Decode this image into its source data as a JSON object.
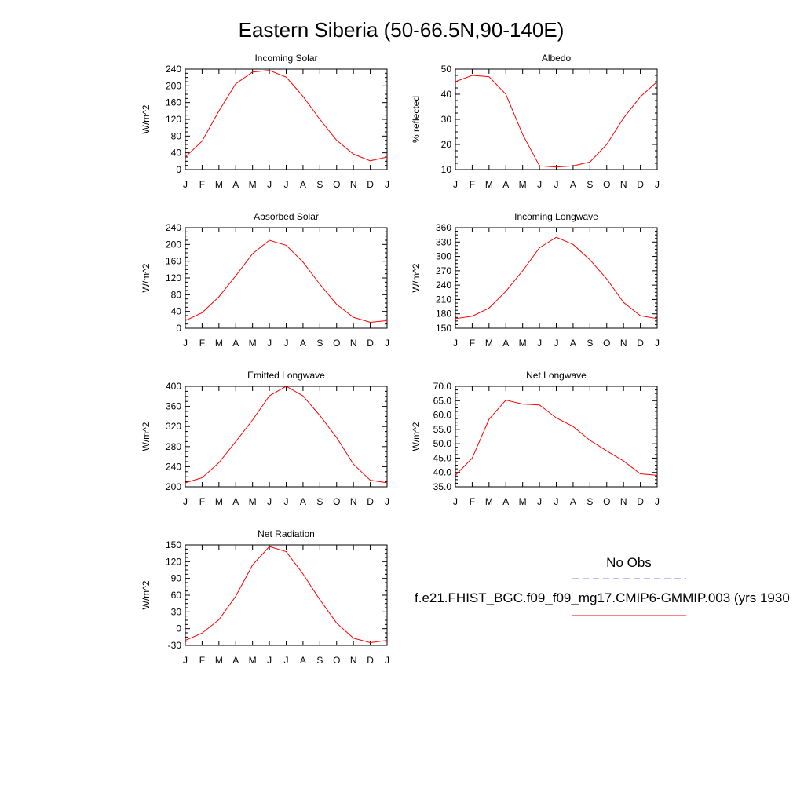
{
  "figure": {
    "title": "Eastern Siberia (50-66.5N,90-140E)"
  },
  "legend": {
    "obs_label": "No Obs",
    "obs_color": "#7a86ff",
    "model_label": "f.e21.FHIST_BGC.f09_f09_mg17.CMIP6-GMMIP.003 (yrs 1930",
    "model_color": "#ff0000"
  },
  "chart_data": [
    {
      "type": "line",
      "title": "Incoming Solar",
      "ylabel": "W/m^2",
      "ylim": [
        0,
        240
      ],
      "yticks": [
        "0",
        "40",
        "80",
        "120",
        "160",
        "200",
        "240"
      ],
      "categories": [
        "J",
        "F",
        "M",
        "A",
        "M",
        "J",
        "J",
        "A",
        "S",
        "O",
        "N",
        "D",
        "J"
      ],
      "series": [
        {
          "values": [
            30,
            68,
            140,
            205,
            233,
            237,
            221,
            175,
            120,
            70,
            37,
            21,
            30
          ]
        }
      ]
    },
    {
      "type": "line",
      "title": "Albedo",
      "ylabel": "% reflected",
      "ylim": [
        10,
        50
      ],
      "yticks": [
        "10",
        "20",
        "30",
        "40",
        "50"
      ],
      "categories": [
        "J",
        "F",
        "M",
        "A",
        "M",
        "J",
        "J",
        "A",
        "S",
        "O",
        "N",
        "D",
        "J"
      ],
      "series": [
        {
          "values": [
            45,
            47.5,
            47,
            40,
            24,
            11.5,
            11,
            11.5,
            13,
            20,
            30.5,
            39,
            45
          ]
        }
      ]
    },
    {
      "type": "line",
      "title": "Absorbed Solar",
      "ylabel": "W/m^2",
      "ylim": [
        0,
        240
      ],
      "yticks": [
        "0",
        "40",
        "80",
        "120",
        "160",
        "200",
        "240"
      ],
      "categories": [
        "J",
        "F",
        "M",
        "A",
        "M",
        "J",
        "J",
        "A",
        "S",
        "O",
        "N",
        "D",
        "J"
      ],
      "series": [
        {
          "values": [
            18,
            37,
            75,
            125,
            178,
            210,
            198,
            158,
            105,
            57,
            26,
            14,
            18
          ]
        }
      ]
    },
    {
      "type": "line",
      "title": "Incoming Longwave",
      "ylabel": "W/m^2",
      "ylim": [
        150,
        360
      ],
      "yticks": [
        "150",
        "180",
        "210",
        "240",
        "270",
        "300",
        "330",
        "360"
      ],
      "categories": [
        "J",
        "F",
        "M",
        "A",
        "M",
        "J",
        "J",
        "A",
        "S",
        "O",
        "N",
        "D",
        "J"
      ],
      "series": [
        {
          "values": [
            170,
            175,
            192,
            227,
            270,
            318,
            340,
            325,
            293,
            253,
            204,
            176,
            170
          ]
        }
      ]
    },
    {
      "type": "line",
      "title": "Emitted Longwave",
      "ylabel": "W/m^2",
      "ylim": [
        200,
        400
      ],
      "yticks": [
        "200",
        "240",
        "280",
        "320",
        "360",
        "400"
      ],
      "categories": [
        "J",
        "F",
        "M",
        "A",
        "M",
        "J",
        "J",
        "A",
        "S",
        "O",
        "N",
        "D",
        "J"
      ],
      "series": [
        {
          "values": [
            208,
            218,
            248,
            290,
            333,
            381,
            400,
            381,
            342,
            298,
            245,
            213,
            208
          ]
        }
      ]
    },
    {
      "type": "line",
      "title": "Net Longwave",
      "ylabel": "W/m^2",
      "ylim": [
        35,
        70
      ],
      "yticks": [
        "35.0",
        "40.0",
        "45.0",
        "50.0",
        "55.0",
        "60.0",
        "65.0",
        "70.0"
      ],
      "categories": [
        "J",
        "F",
        "M",
        "A",
        "M",
        "J",
        "J",
        "A",
        "S",
        "O",
        "N",
        "D",
        "J"
      ],
      "series": [
        {
          "values": [
            39,
            45,
            58.5,
            65.2,
            63.8,
            63.5,
            59,
            56,
            51.2,
            47.5,
            44,
            39.5,
            39
          ]
        }
      ]
    },
    {
      "type": "line",
      "title": "Net Radiation",
      "ylabel": "W/m^2",
      "ylim": [
        -30,
        150
      ],
      "yticks": [
        "-30",
        "0",
        "30",
        "60",
        "90",
        "120",
        "150"
      ],
      "categories": [
        "J",
        "F",
        "M",
        "A",
        "M",
        "J",
        "J",
        "A",
        "S",
        "O",
        "N",
        "D",
        "J"
      ],
      "series": [
        {
          "values": [
            -21,
            -8,
            16,
            58,
            114,
            147,
            138,
            98,
            52,
            10,
            -17,
            -25,
            -21
          ]
        }
      ]
    }
  ]
}
